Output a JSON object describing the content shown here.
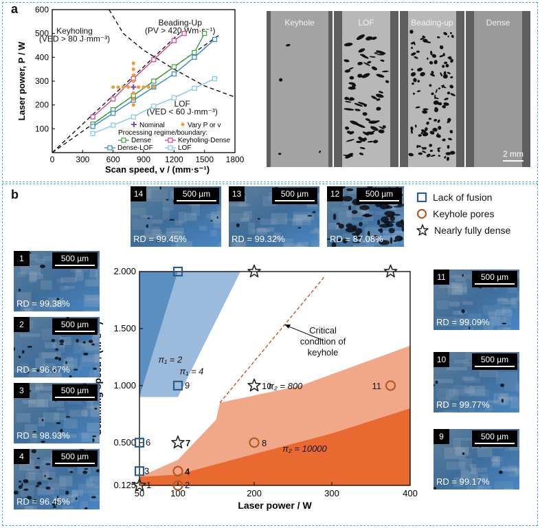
{
  "panel_labels": {
    "a": "a",
    "b": "b"
  },
  "colors": {
    "dense": "#3aa13a",
    "keyholing_dense": "#d63b8a",
    "dense_lof": "#2e89c8",
    "lof": "#82c5e8",
    "vary": "#ee9b3a",
    "nominal": "#7a4fb0",
    "lof_marker": "#2a5d8c",
    "keyhole_marker": "#b05a2a",
    "dense_marker": "#222222",
    "region_pi1_2": "#5a8fc0",
    "region_pi1_4": "#9bbbdd",
    "region_pi2_800": "#f0a888",
    "region_pi2_10000": "#e86a30",
    "critical": "#b85a2a"
  },
  "chart_data": [
    {
      "type": "line",
      "xlabel": "Scan speed, v / (mm·s⁻¹)",
      "ylabel": "Laser power, P / W",
      "xlim": [
        0,
        1800
      ],
      "ylim": [
        0,
        600
      ],
      "xticks": [
        0,
        300,
        600,
        900,
        1200,
        1500,
        1800
      ],
      "yticks": [
        100,
        200,
        300,
        400,
        500,
        600
      ],
      "annotations": [
        {
          "text": "Keyholing",
          "x": 220,
          "y": 510
        },
        {
          "text": "(VED > 80 J·mm⁻³)",
          "x": 220,
          "y": 478
        },
        {
          "text": "Beading-Up",
          "x": 1260,
          "y": 545
        },
        {
          "text": "(PV > 420 Wm·s⁻¹)",
          "x": 1260,
          "y": 512
        },
        {
          "text": "LOF",
          "x": 1280,
          "y": 205
        },
        {
          "text": "(VED < 60 J·mm⁻³)",
          "x": 1280,
          "y": 172
        }
      ],
      "legend": {
        "nominal": "Nominal",
        "vary": "Vary P or v",
        "subtitle": "Processing regime/boundary:",
        "dense": "Dense",
        "keyholing_dense": "Keyholing-Dense",
        "dense_lof": "Dense-LOF",
        "lof": "LOF"
      },
      "boundaries": {
        "ved80_line": [
          [
            0,
            0
          ],
          [
            1250,
            500
          ]
        ],
        "ved60_line": [
          [
            0,
            0
          ],
          [
            1650,
            495
          ]
        ],
        "beading_curve": [
          [
            560,
            600
          ],
          [
            700,
            500
          ],
          [
            900,
            430
          ],
          [
            1200,
            350
          ],
          [
            1500,
            280
          ],
          [
            1800,
            233
          ]
        ]
      },
      "series": [
        {
          "name": "Dense",
          "x": [
            400,
            600,
            800,
            1000,
            1200,
            1400,
            1500
          ],
          "y": [
            120,
            180,
            240,
            300,
            360,
            420,
            500
          ]
        },
        {
          "name": "Keyholing-Dense",
          "x": [
            400,
            600,
            800,
            1000,
            1200,
            1300
          ],
          "y": [
            150,
            225,
            310,
            390,
            470,
            500
          ]
        },
        {
          "name": "Dense-LOF",
          "x": [
            400,
            600,
            800,
            1000,
            1200,
            1400,
            1600
          ],
          "y": [
            110,
            165,
            220,
            275,
            330,
            400,
            475
          ]
        },
        {
          "name": "LOF",
          "x": [
            400,
            600,
            800,
            1000,
            1200,
            1400,
            1600
          ],
          "y": [
            80,
            115,
            150,
            195,
            230,
            270,
            310
          ]
        }
      ],
      "vary_points": {
        "vertical": {
          "x": 800,
          "y": [
            200,
            225,
            250,
            275,
            300,
            325,
            350,
            375
          ]
        },
        "horizontal": {
          "y": 275,
          "x": [
            600,
            650,
            700,
            750,
            850,
            900,
            950,
            1000
          ]
        }
      },
      "nominal_point": {
        "x": 800,
        "y": 275
      }
    },
    {
      "type": "scatter",
      "xlabel": "Laser power / W",
      "ylabel": "Scanning speed / (m·s⁻¹)",
      "xlim": [
        50,
        400
      ],
      "ylim": [
        0.125,
        2.0
      ],
      "xticks": [
        50,
        100,
        200,
        300,
        400
      ],
      "xtick_labels": [
        "50",
        "100",
        "200",
        "300",
        "400"
      ],
      "yticks": [
        0.125,
        0.5,
        1.0,
        1.5,
        2.0
      ],
      "ytick_labels": [
        "0.125",
        "0.500",
        "1.000",
        "1.500",
        "2.000"
      ],
      "region_labels": [
        {
          "text": "π₁ = 2",
          "x": 90,
          "y": 1.2
        },
        {
          "text": "π₁ = 4",
          "x": 118,
          "y": 1.1
        },
        {
          "text": "π₂ = 800",
          "x": 240,
          "y": 0.97
        },
        {
          "text": "π₂ = 10000",
          "x": 265,
          "y": 0.42
        }
      ],
      "critical_label": [
        "Critical",
        "condition of",
        "keyhole"
      ],
      "regions": {
        "pi1_2": [
          [
            50,
            2.0
          ],
          [
            100,
            2.0
          ],
          [
            50,
            0.9
          ]
        ],
        "pi1_4": [
          [
            100,
            2.0
          ],
          [
            125,
            2.0
          ],
          [
            182,
            2.0
          ],
          [
            100,
            0.9
          ],
          [
            50,
            0.9
          ]
        ],
        "pi2_800": [
          [
            100,
            0.35
          ],
          [
            150,
            0.7
          ],
          [
            155,
            0.85
          ],
          [
            260,
            1.0
          ],
          [
            400,
            1.35
          ],
          [
            400,
            0.125
          ],
          [
            50,
            0.125
          ],
          [
            50,
            0.2
          ]
        ],
        "pi2_10000": [
          [
            50,
            0.2
          ],
          [
            100,
            0.22
          ],
          [
            200,
            0.4
          ],
          [
            300,
            0.58
          ],
          [
            400,
            0.8
          ],
          [
            400,
            0.125
          ],
          [
            50,
            0.125
          ]
        ]
      },
      "critical_line": [
        [
          155,
          0.85
        ],
        [
          290,
          1.95
        ]
      ],
      "legend": [
        {
          "marker": "square",
          "label": "Lack of fusion"
        },
        {
          "marker": "circle",
          "label": "Keyhole pores"
        },
        {
          "marker": "star",
          "label": "Nearly fully dense"
        }
      ],
      "points": [
        {
          "id": "1",
          "power": 50,
          "speed": 0.125,
          "type": "star",
          "label": "1"
        },
        {
          "id": "2",
          "power": 100,
          "speed": 0.125,
          "type": "circle",
          "label": "2"
        },
        {
          "id": "3",
          "power": 50,
          "speed": 0.25,
          "type": "square",
          "label": "3"
        },
        {
          "id": "4",
          "power": 100,
          "speed": 0.25,
          "type": "circle",
          "label": "4"
        },
        {
          "id": "6",
          "power": 50,
          "speed": 0.5,
          "type": "square",
          "label": "6"
        },
        {
          "id": "7",
          "power": 100,
          "speed": 0.5,
          "type": "star",
          "label": "7"
        },
        {
          "id": "8",
          "power": 200,
          "speed": 0.5,
          "type": "circle",
          "label": "8"
        },
        {
          "id": "9",
          "power": 100,
          "speed": 1.0,
          "type": "square",
          "label": "9"
        },
        {
          "id": "10",
          "power": 200,
          "speed": 1.0,
          "type": "star",
          "label": "10"
        },
        {
          "id": "11",
          "power": 375,
          "speed": 1.0,
          "type": "circle",
          "label": "11"
        },
        {
          "id": "12",
          "power": 100,
          "speed": 2.0,
          "type": "square",
          "label": ""
        },
        {
          "id": "13",
          "power": 200,
          "speed": 2.0,
          "type": "star",
          "label": ""
        },
        {
          "id": "14",
          "power": 375,
          "speed": 2.0,
          "type": "star",
          "label": ""
        }
      ]
    }
  ],
  "xray_panels": [
    {
      "label": "Keyhole"
    },
    {
      "label": "LOF"
    },
    {
      "label": "Beading-up"
    },
    {
      "label": "Dense"
    }
  ],
  "xray_scalebar": "2 mm",
  "micrographs": [
    {
      "num": "14",
      "rd": "RD = 99.45%",
      "scale": "500 µm"
    },
    {
      "num": "13",
      "rd": "RD = 99.32%",
      "scale": "500 µm"
    },
    {
      "num": "12",
      "rd": "RD = 87.08%",
      "scale": "500 µm"
    },
    {
      "num": "1",
      "rd": "RD = 99.38%",
      "scale": "500 µm"
    },
    {
      "num": "2",
      "rd": "RD = 96.67%",
      "scale": "500 µm"
    },
    {
      "num": "3",
      "rd": "RD = 98.93%",
      "scale": "500 µm"
    },
    {
      "num": "4",
      "rd": "RD = 96.45%",
      "scale": "500 µm"
    },
    {
      "num": "11",
      "rd": "RD = 99.09%",
      "scale": "500 µm"
    },
    {
      "num": "10",
      "rd": "RD = 99.77%",
      "scale": "500 µm"
    },
    {
      "num": "9",
      "rd": "RD = 99.17%",
      "scale": "500 µm"
    }
  ]
}
